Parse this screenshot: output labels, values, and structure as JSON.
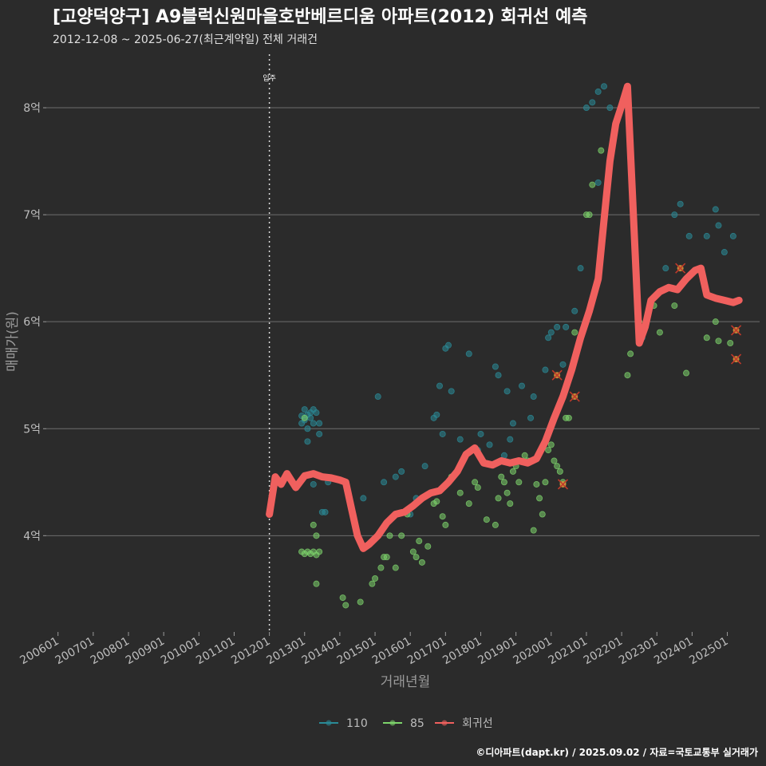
{
  "chart_data": {
    "type": "scatter",
    "title": "[고양덕양구] A9블럭신원마을호반베르디움 아파트(2012) 회귀선 예측",
    "subtitle": "2012-12-08 ~ 2025-06-27(최근계약일) 전체 거래건",
    "xlabel": "거래년월",
    "ylabel": "매매가(원)",
    "x_ticks": [
      "200601",
      "200701",
      "200801",
      "200901",
      "201001",
      "201101",
      "201201",
      "201301",
      "201401",
      "201501",
      "201601",
      "201701",
      "201801",
      "201901",
      "202001",
      "202101",
      "202201",
      "202301",
      "202401",
      "202501"
    ],
    "y_ticks": [
      "4억",
      "5억",
      "6억",
      "7억",
      "8억"
    ],
    "y_tick_values": [
      4,
      5,
      6,
      7,
      8
    ],
    "xlim": [
      "2005-09",
      "2025-12"
    ],
    "ylim": [
      3.1,
      8.5
    ],
    "y_unit": "억",
    "annotation": {
      "label": "입주",
      "x": "2012-01"
    },
    "legend_position": "bottom",
    "legend": [
      {
        "key": "110",
        "label": "110",
        "color": "#2a8b97"
      },
      {
        "key": "85",
        "label": "85",
        "color": "#7dd46b"
      },
      {
        "key": "regression",
        "label": "회귀선",
        "color": "#f0605e"
      }
    ],
    "series": [
      {
        "name": "110",
        "color": "#2a8b97",
        "points": [
          [
            "2012-12",
            5.05
          ],
          [
            "2012-12",
            5.12
          ],
          [
            "2013-01",
            5.18
          ],
          [
            "2013-01",
            5.08
          ],
          [
            "2013-02",
            5.13
          ],
          [
            "2013-02",
            5.0
          ],
          [
            "2013-03",
            5.15
          ],
          [
            "2013-03",
            5.1
          ],
          [
            "2013-04",
            5.18
          ],
          [
            "2013-04",
            5.05
          ],
          [
            "2013-05",
            5.15
          ],
          [
            "2013-06",
            5.05
          ],
          [
            "2013-06",
            4.95
          ],
          [
            "2013-07",
            4.22
          ],
          [
            "2013-08",
            4.22
          ],
          [
            "2013-02",
            4.88
          ],
          [
            "2013-04",
            4.48
          ],
          [
            "2013-09",
            4.5
          ],
          [
            "2014-09",
            4.35
          ],
          [
            "2015-02",
            5.3
          ],
          [
            "2015-04",
            4.5
          ],
          [
            "2015-08",
            4.55
          ],
          [
            "2015-10",
            4.6
          ],
          [
            "2016-01",
            4.2
          ],
          [
            "2016-03",
            4.35
          ],
          [
            "2016-06",
            4.65
          ],
          [
            "2016-09",
            5.1
          ],
          [
            "2016-10",
            5.13
          ],
          [
            "2016-12",
            4.95
          ],
          [
            "2016-11",
            5.4
          ],
          [
            "2017-01",
            5.75
          ],
          [
            "2017-02",
            5.78
          ],
          [
            "2017-03",
            5.35
          ],
          [
            "2017-06",
            4.9
          ],
          [
            "2017-09",
            5.7
          ],
          [
            "2017-12",
            4.8
          ],
          [
            "2018-01",
            4.95
          ],
          [
            "2018-04",
            4.85
          ],
          [
            "2018-06",
            5.58
          ],
          [
            "2018-07",
            5.5
          ],
          [
            "2018-09",
            4.75
          ],
          [
            "2018-10",
            5.35
          ],
          [
            "2018-11",
            4.9
          ],
          [
            "2018-12",
            5.05
          ],
          [
            "2019-03",
            5.4
          ],
          [
            "2019-06",
            5.1
          ],
          [
            "2019-07",
            5.3
          ],
          [
            "2019-11",
            5.55
          ],
          [
            "2019-12",
            5.85
          ],
          [
            "2020-01",
            5.9
          ],
          [
            "2020-03",
            5.95
          ],
          [
            "2020-05",
            5.6
          ],
          [
            "2020-06",
            5.95
          ],
          [
            "2020-09",
            6.1
          ],
          [
            "2020-11",
            6.5
          ],
          [
            "2021-01",
            8.0
          ],
          [
            "2021-03",
            8.05
          ],
          [
            "2021-05",
            8.15
          ],
          [
            "2021-07",
            8.2
          ],
          [
            "2021-09",
            8.0
          ],
          [
            "2021-05",
            7.3
          ],
          [
            "2022-08",
            5.85
          ],
          [
            "2023-04",
            6.5
          ],
          [
            "2023-07",
            7.0
          ],
          [
            "2023-09",
            7.1
          ],
          [
            "2023-12",
            6.8
          ],
          [
            "2024-06",
            6.8
          ],
          [
            "2024-09",
            7.05
          ],
          [
            "2024-10",
            6.9
          ],
          [
            "2024-12",
            6.65
          ],
          [
            "2025-03",
            6.8
          ]
        ]
      },
      {
        "name": "85",
        "color": "#7dd46b",
        "points": [
          [
            "2012-12",
            3.85
          ],
          [
            "2013-01",
            3.83
          ],
          [
            "2013-02",
            3.85
          ],
          [
            "2013-03",
            3.83
          ],
          [
            "2013-04",
            3.85
          ],
          [
            "2013-05",
            3.82
          ],
          [
            "2013-06",
            3.85
          ],
          [
            "2013-01",
            5.1
          ],
          [
            "2013-04",
            4.1
          ],
          [
            "2013-05",
            4.0
          ],
          [
            "2013-05",
            3.55
          ],
          [
            "2014-02",
            3.42
          ],
          [
            "2014-03",
            3.35
          ],
          [
            "2014-08",
            3.38
          ],
          [
            "2014-12",
            3.55
          ],
          [
            "2015-01",
            3.6
          ],
          [
            "2015-03",
            3.7
          ],
          [
            "2015-04",
            3.8
          ],
          [
            "2015-05",
            3.8
          ],
          [
            "2015-06",
            4.0
          ],
          [
            "2015-08",
            3.7
          ],
          [
            "2015-10",
            4.0
          ],
          [
            "2015-12",
            4.2
          ],
          [
            "2016-02",
            3.85
          ],
          [
            "2016-03",
            3.8
          ],
          [
            "2016-04",
            3.95
          ],
          [
            "2016-05",
            3.75
          ],
          [
            "2016-07",
            3.9
          ],
          [
            "2016-09",
            4.3
          ],
          [
            "2016-10",
            4.32
          ],
          [
            "2016-12",
            4.18
          ],
          [
            "2017-01",
            4.1
          ],
          [
            "2017-03",
            4.55
          ],
          [
            "2017-06",
            4.4
          ],
          [
            "2017-09",
            4.3
          ],
          [
            "2017-10",
            4.8
          ],
          [
            "2017-11",
            4.5
          ],
          [
            "2017-12",
            4.45
          ],
          [
            "2018-03",
            4.15
          ],
          [
            "2018-06",
            4.1
          ],
          [
            "2018-07",
            4.35
          ],
          [
            "2018-08",
            4.55
          ],
          [
            "2018-09",
            4.5
          ],
          [
            "2018-10",
            4.4
          ],
          [
            "2018-11",
            4.3
          ],
          [
            "2018-12",
            4.6
          ],
          [
            "2019-01",
            4.65
          ],
          [
            "2019-02",
            4.5
          ],
          [
            "2019-04",
            4.75
          ],
          [
            "2019-05",
            4.7
          ],
          [
            "2019-06",
            4.7
          ],
          [
            "2019-07",
            4.05
          ],
          [
            "2019-08",
            4.48
          ],
          [
            "2019-09",
            4.35
          ],
          [
            "2019-10",
            4.2
          ],
          [
            "2019-11",
            4.5
          ],
          [
            "2019-12",
            4.8
          ],
          [
            "2020-01",
            4.85
          ],
          [
            "2020-02",
            4.7
          ],
          [
            "2020-03",
            4.65
          ],
          [
            "2020-04",
            4.6
          ],
          [
            "2020-05",
            4.5
          ],
          [
            "2020-06",
            5.1
          ],
          [
            "2020-07",
            5.1
          ],
          [
            "2020-09",
            5.9
          ],
          [
            "2021-01",
            7.0
          ],
          [
            "2021-02",
            7.0
          ],
          [
            "2021-03",
            7.28
          ],
          [
            "2021-06",
            7.6
          ],
          [
            "2022-03",
            5.5
          ],
          [
            "2022-04",
            5.7
          ],
          [
            "2022-07",
            6.0
          ],
          [
            "2022-12",
            6.15
          ],
          [
            "2023-02",
            5.9
          ],
          [
            "2023-07",
            6.15
          ],
          [
            "2023-11",
            5.52
          ],
          [
            "2024-06",
            5.85
          ],
          [
            "2024-09",
            6.0
          ],
          [
            "2024-10",
            5.82
          ],
          [
            "2025-02",
            5.8
          ]
        ]
      }
    ],
    "regression": {
      "name": "회귀선",
      "color": "#f0605e",
      "points": [
        [
          "2012-01",
          4.2
        ],
        [
          "2012-03",
          4.55
        ],
        [
          "2012-05",
          4.48
        ],
        [
          "2012-07",
          4.58
        ],
        [
          "2012-10",
          4.45
        ],
        [
          "2013-01",
          4.56
        ],
        [
          "2013-04",
          4.58
        ],
        [
          "2013-07",
          4.55
        ],
        [
          "2013-10",
          4.54
        ],
        [
          "2014-01",
          4.52
        ],
        [
          "2014-03",
          4.5
        ],
        [
          "2014-05",
          4.25
        ],
        [
          "2014-07",
          4.0
        ],
        [
          "2014-09",
          3.88
        ],
        [
          "2014-11",
          3.92
        ],
        [
          "2015-02",
          4.0
        ],
        [
          "2015-05",
          4.12
        ],
        [
          "2015-08",
          4.2
        ],
        [
          "2015-11",
          4.22
        ],
        [
          "2016-02",
          4.28
        ],
        [
          "2016-05",
          4.35
        ],
        [
          "2016-08",
          4.4
        ],
        [
          "2016-11",
          4.42
        ],
        [
          "2017-02",
          4.5
        ],
        [
          "2017-05",
          4.6
        ],
        [
          "2017-08",
          4.76
        ],
        [
          "2017-11",
          4.82
        ],
        [
          "2018-02",
          4.68
        ],
        [
          "2018-05",
          4.66
        ],
        [
          "2018-08",
          4.7
        ],
        [
          "2018-11",
          4.68
        ],
        [
          "2019-02",
          4.7
        ],
        [
          "2019-05",
          4.68
        ],
        [
          "2019-08",
          4.72
        ],
        [
          "2019-11",
          4.88
        ],
        [
          "2020-02",
          5.1
        ],
        [
          "2020-05",
          5.3
        ],
        [
          "2020-08",
          5.55
        ],
        [
          "2020-11",
          5.85
        ],
        [
          "2021-02",
          6.1
        ],
        [
          "2021-05",
          6.4
        ],
        [
          "2021-07",
          6.95
        ],
        [
          "2021-09",
          7.5
        ],
        [
          "2021-11",
          7.85
        ],
        [
          "2022-01",
          8.02
        ],
        [
          "2022-03",
          8.2
        ],
        [
          "2022-05",
          7.0
        ],
        [
          "2022-07",
          5.8
        ],
        [
          "2022-09",
          5.95
        ],
        [
          "2022-11",
          6.2
        ],
        [
          "2023-02",
          6.28
        ],
        [
          "2023-05",
          6.32
        ],
        [
          "2023-08",
          6.3
        ],
        [
          "2023-11",
          6.4
        ],
        [
          "2024-02",
          6.48
        ],
        [
          "2024-04",
          6.5
        ],
        [
          "2024-06",
          6.25
        ],
        [
          "2024-09",
          6.22
        ],
        [
          "2024-12",
          6.2
        ],
        [
          "2025-03",
          6.18
        ],
        [
          "2025-05",
          6.2
        ]
      ]
    },
    "highlight_points": [
      [
        "2020-03",
        5.5
      ],
      [
        "2020-05",
        4.48
      ],
      [
        "2020-09",
        5.3
      ],
      [
        "2023-09",
        6.5
      ],
      [
        "2025-04",
        5.92
      ],
      [
        "2025-04",
        5.65
      ]
    ]
  },
  "caption": "©디아파트(dapt.kr) / 2025.09.02 / 자료=국토교통부 실거래가",
  "colors": {
    "background": "#2b2b2b",
    "grid": "#6e6e6e",
    "marker_x": "#c0392b"
  }
}
